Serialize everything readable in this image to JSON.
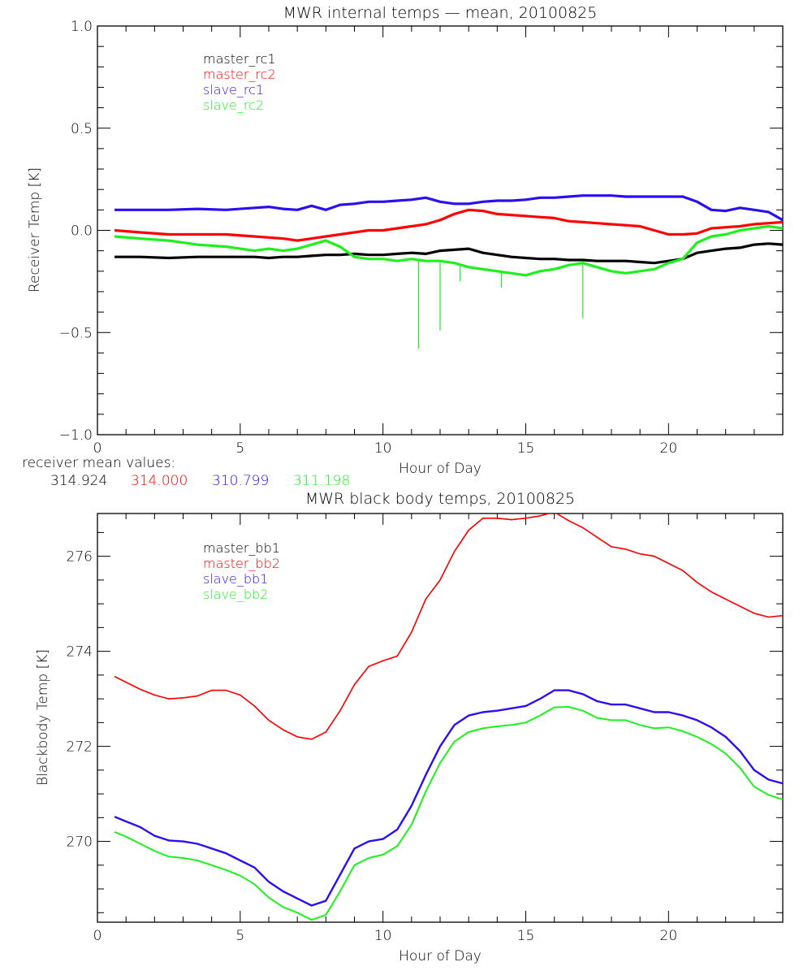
{
  "colors": {
    "master_1": "#000000",
    "master_2": "#ff0000",
    "slave_1": "#2a0ff0",
    "slave_2": "#1ef01e"
  },
  "receiver_mean": {
    "label": "receiver mean values:",
    "values": [
      "314.924",
      "314.000",
      "310.799",
      "311.198"
    ]
  },
  "chart_data": [
    {
      "type": "line",
      "title": "MWR internal temps — mean, 20100825",
      "xlabel": "Hour of Day",
      "ylabel": "Receiver Temp [K]",
      "xlim": [
        0,
        24
      ],
      "ylim": [
        -1.0,
        1.0
      ],
      "xticks": [
        "0",
        "5",
        "10",
        "15",
        "20"
      ],
      "xtick_values": [
        0,
        5,
        10,
        15,
        20
      ],
      "yticks": [
        "-1.0",
        "-0.5",
        "0.0",
        "0.5",
        "1.0"
      ],
      "ytick_values": [
        -1.0,
        -0.5,
        0.0,
        0.5,
        1.0
      ],
      "grid": false,
      "legend_position": "top-left",
      "x": [
        0.6,
        1.5,
        2.5,
        3.5,
        4.5,
        5.5,
        6.0,
        6.5,
        7.0,
        7.5,
        8.0,
        8.5,
        9.0,
        9.5,
        10.0,
        10.5,
        11.0,
        11.5,
        12.0,
        12.5,
        13.0,
        13.5,
        14.0,
        14.5,
        15.0,
        15.5,
        16.0,
        16.5,
        17.0,
        17.5,
        18.0,
        18.5,
        19.0,
        19.5,
        20.0,
        20.5,
        21.0,
        21.5,
        22.0,
        22.5,
        23.0,
        23.5,
        24.0
      ],
      "series": [
        {
          "name": "master_rc1",
          "color_key": "master_1",
          "values": [
            -0.13,
            -0.13,
            -0.135,
            -0.13,
            -0.13,
            -0.13,
            -0.135,
            -0.13,
            -0.13,
            -0.125,
            -0.12,
            -0.12,
            -0.115,
            -0.12,
            -0.12,
            -0.115,
            -0.11,
            -0.115,
            -0.1,
            -0.095,
            -0.09,
            -0.11,
            -0.12,
            -0.13,
            -0.135,
            -0.14,
            -0.14,
            -0.145,
            -0.145,
            -0.15,
            -0.15,
            -0.15,
            -0.155,
            -0.16,
            -0.15,
            -0.14,
            -0.11,
            -0.1,
            -0.09,
            -0.085,
            -0.07,
            -0.065,
            -0.07
          ]
        },
        {
          "name": "master_rc2",
          "color_key": "master_2",
          "values": [
            0.0,
            -0.01,
            -0.02,
            -0.02,
            -0.02,
            -0.03,
            -0.035,
            -0.04,
            -0.05,
            -0.04,
            -0.03,
            -0.02,
            -0.01,
            0.0,
            0.0,
            0.01,
            0.02,
            0.03,
            0.05,
            0.08,
            0.1,
            0.095,
            0.08,
            0.075,
            0.07,
            0.065,
            0.06,
            0.045,
            0.04,
            0.035,
            0.03,
            0.025,
            0.02,
            0.0,
            -0.02,
            -0.02,
            -0.015,
            0.01,
            0.015,
            0.02,
            0.03,
            0.035,
            0.04
          ]
        },
        {
          "name": "slave_rc1",
          "color_key": "slave_1",
          "values": [
            0.1,
            0.1,
            0.1,
            0.105,
            0.1,
            0.11,
            0.115,
            0.105,
            0.1,
            0.12,
            0.1,
            0.125,
            0.13,
            0.14,
            0.14,
            0.145,
            0.15,
            0.16,
            0.14,
            0.13,
            0.13,
            0.14,
            0.145,
            0.145,
            0.15,
            0.16,
            0.16,
            0.165,
            0.17,
            0.17,
            0.17,
            0.165,
            0.165,
            0.165,
            0.165,
            0.165,
            0.14,
            0.1,
            0.095,
            0.11,
            0.1,
            0.09,
            0.05
          ]
        },
        {
          "name": "slave_rc2",
          "color_key": "slave_2",
          "values": [
            -0.03,
            -0.04,
            -0.05,
            -0.07,
            -0.08,
            -0.1,
            -0.09,
            -0.1,
            -0.09,
            -0.07,
            -0.05,
            -0.08,
            -0.13,
            -0.14,
            -0.14,
            -0.15,
            -0.14,
            -0.15,
            -0.15,
            -0.16,
            -0.18,
            -0.19,
            -0.2,
            -0.21,
            -0.22,
            -0.2,
            -0.19,
            -0.17,
            -0.16,
            -0.18,
            -0.2,
            -0.21,
            -0.2,
            -0.19,
            -0.16,
            -0.14,
            -0.06,
            -0.03,
            -0.02,
            0.0,
            0.01,
            0.02,
            0.01
          ]
        }
      ],
      "spikes": {
        "series": "slave_rc2",
        "x": [
          11.25,
          12.0,
          12.7,
          14.15,
          17.0
        ],
        "min": [
          -0.58,
          -0.49,
          -0.25,
          -0.28,
          -0.43
        ]
      }
    },
    {
      "type": "line",
      "title": "MWR black body temps, 20100825",
      "xlabel": "Hour of Day",
      "ylabel": "Blackbody Temp [K]",
      "xlim": [
        0,
        24
      ],
      "ylim": [
        268.3,
        276.9
      ],
      "xticks": [
        "0",
        "5",
        "10",
        "15",
        "20"
      ],
      "xtick_values": [
        0,
        5,
        10,
        15,
        20
      ],
      "yticks": [
        "270",
        "272",
        "274",
        "276"
      ],
      "ytick_values": [
        270,
        272,
        274,
        276
      ],
      "grid": false,
      "legend_position": "top-left",
      "x": [
        0.6,
        1.0,
        1.5,
        2.0,
        2.5,
        3.0,
        3.5,
        4.0,
        4.5,
        5.0,
        5.5,
        6.0,
        6.5,
        7.0,
        7.5,
        8.0,
        8.5,
        9.0,
        9.5,
        10.0,
        10.5,
        11.0,
        11.5,
        12.0,
        12.5,
        13.0,
        13.5,
        14.0,
        14.5,
        15.0,
        15.5,
        16.0,
        16.5,
        17.0,
        17.5,
        18.0,
        18.5,
        19.0,
        19.5,
        20.0,
        20.5,
        21.0,
        21.5,
        22.0,
        22.5,
        23.0,
        23.5,
        24.0
      ],
      "series": [
        {
          "name": "master_bb1",
          "color_key": "master_1",
          "values": [
            273.47,
            273.35,
            273.2,
            273.08,
            273.0,
            273.02,
            273.06,
            273.18,
            273.18,
            273.08,
            272.85,
            272.55,
            272.35,
            272.2,
            272.15,
            272.3,
            272.75,
            273.3,
            273.68,
            273.8,
            273.9,
            274.4,
            275.1,
            275.5,
            276.1,
            276.55,
            276.8,
            276.8,
            276.77,
            276.8,
            276.85,
            276.93,
            276.75,
            276.6,
            276.4,
            276.2,
            276.15,
            276.05,
            276.0,
            275.85,
            275.7,
            275.45,
            275.25,
            275.1,
            274.95,
            274.8,
            274.72,
            274.75
          ]
        },
        {
          "name": "master_bb2",
          "color_key": "master_2",
          "values": [
            273.47,
            273.35,
            273.2,
            273.08,
            273.0,
            273.02,
            273.06,
            273.18,
            273.18,
            273.08,
            272.85,
            272.55,
            272.35,
            272.2,
            272.15,
            272.3,
            272.75,
            273.3,
            273.68,
            273.8,
            273.9,
            274.4,
            275.1,
            275.5,
            276.1,
            276.55,
            276.8,
            276.8,
            276.77,
            276.8,
            276.85,
            276.93,
            276.75,
            276.6,
            276.4,
            276.2,
            276.15,
            276.05,
            276.0,
            275.85,
            275.7,
            275.45,
            275.25,
            275.1,
            274.95,
            274.8,
            274.72,
            274.75
          ]
        },
        {
          "name": "slave_bb1",
          "color_key": "slave_1",
          "values": [
            270.52,
            270.42,
            270.3,
            270.12,
            270.02,
            270.0,
            269.95,
            269.85,
            269.75,
            269.6,
            269.45,
            269.15,
            268.95,
            268.8,
            268.65,
            268.75,
            269.3,
            269.85,
            270.0,
            270.05,
            270.25,
            270.75,
            271.4,
            272.0,
            272.45,
            272.65,
            272.72,
            272.75,
            272.8,
            272.85,
            273.0,
            273.18,
            273.18,
            273.1,
            272.95,
            272.88,
            272.88,
            272.8,
            272.72,
            272.72,
            272.65,
            272.55,
            272.4,
            272.2,
            271.9,
            271.5,
            271.3,
            271.22
          ]
        },
        {
          "name": "slave_bb2",
          "color_key": "slave_2",
          "values": [
            270.2,
            270.1,
            269.95,
            269.8,
            269.68,
            269.65,
            269.6,
            269.5,
            269.4,
            269.28,
            269.1,
            268.82,
            268.62,
            268.5,
            268.35,
            268.45,
            268.95,
            269.5,
            269.65,
            269.72,
            269.9,
            270.35,
            271.05,
            271.65,
            272.1,
            272.3,
            272.38,
            272.42,
            272.45,
            272.5,
            272.65,
            272.82,
            272.83,
            272.75,
            272.6,
            272.55,
            272.55,
            272.45,
            272.38,
            272.4,
            272.32,
            272.2,
            272.05,
            271.85,
            271.55,
            271.15,
            270.98,
            270.88
          ]
        }
      ]
    }
  ]
}
